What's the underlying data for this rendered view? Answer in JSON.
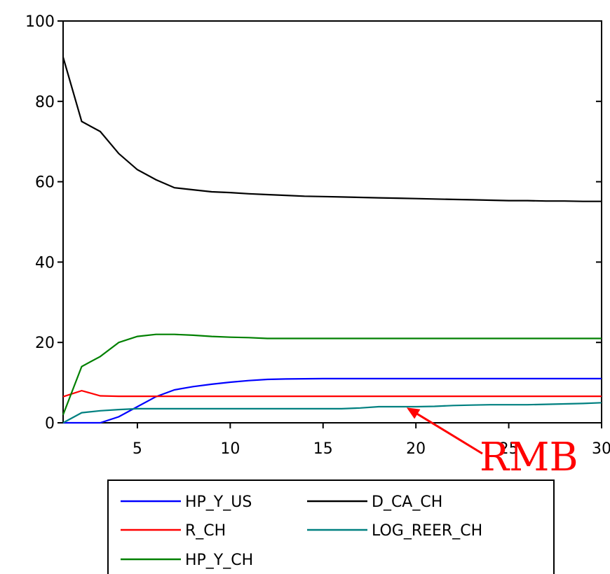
{
  "chart_data": {
    "type": "line",
    "x": [
      1,
      2,
      3,
      4,
      5,
      6,
      7,
      8,
      9,
      10,
      11,
      12,
      13,
      14,
      15,
      16,
      17,
      18,
      19,
      20,
      21,
      22,
      23,
      24,
      25,
      26,
      27,
      28,
      29,
      30
    ],
    "xlim": [
      1,
      30
    ],
    "ylim": [
      0,
      100
    ],
    "x_ticks": [
      "5",
      "10",
      "15",
      "20",
      "25",
      "30"
    ],
    "y_ticks": [
      "0",
      "20",
      "40",
      "60",
      "80",
      "100"
    ],
    "grid": false,
    "legend_position": "bottom",
    "series": [
      {
        "name": "HP_Y_US",
        "color": "#0000ff",
        "values": [
          0,
          0,
          0,
          1.5,
          4,
          6.5,
          8.2,
          9,
          9.6,
          10.1,
          10.5,
          10.8,
          10.9,
          10.95,
          11,
          11,
          11,
          11,
          11,
          11,
          11,
          11,
          11,
          11,
          11,
          11,
          11,
          11,
          11,
          11
        ]
      },
      {
        "name": "D_CA_CH",
        "color": "#000000",
        "values": [
          91,
          75,
          72.5,
          67,
          63,
          60.5,
          58.5,
          58,
          57.5,
          57.3,
          57,
          56.8,
          56.6,
          56.4,
          56.3,
          56.2,
          56.1,
          56,
          55.9,
          55.8,
          55.7,
          55.6,
          55.5,
          55.4,
          55.3,
          55.3,
          55.2,
          55.2,
          55.1,
          55.1
        ]
      },
      {
        "name": "R_CH",
        "color": "#ff0000",
        "values": [
          6.5,
          8,
          6.7,
          6.6,
          6.6,
          6.6,
          6.6,
          6.6,
          6.6,
          6.6,
          6.6,
          6.6,
          6.6,
          6.6,
          6.6,
          6.6,
          6.6,
          6.6,
          6.6,
          6.6,
          6.6,
          6.6,
          6.6,
          6.6,
          6.6,
          6.6,
          6.6,
          6.6,
          6.6,
          6.6
        ]
      },
      {
        "name": "LOG_REER_CH",
        "color": "#008080",
        "values": [
          0,
          2.5,
          3,
          3.3,
          3.5,
          3.5,
          3.5,
          3.5,
          3.5,
          3.5,
          3.5,
          3.5,
          3.5,
          3.5,
          3.5,
          3.5,
          3.7,
          4,
          4,
          4,
          4.1,
          4.3,
          4.4,
          4.5,
          4.5,
          4.5,
          4.6,
          4.7,
          4.8,
          5
        ]
      },
      {
        "name": "HP_Y_CH",
        "color": "#008000",
        "values": [
          2,
          14,
          16.5,
          20,
          21.5,
          22,
          22,
          21.8,
          21.5,
          21.3,
          21.2,
          21,
          21,
          21,
          21,
          21,
          21,
          21,
          21,
          21,
          21,
          21,
          21,
          21,
          21,
          21,
          21,
          21,
          21,
          21
        ]
      }
    ],
    "annotations": [
      {
        "text": "RMB",
        "color": "#ff0000",
        "points_to": {
          "x": 19.5,
          "y": 3.8
        }
      }
    ]
  }
}
